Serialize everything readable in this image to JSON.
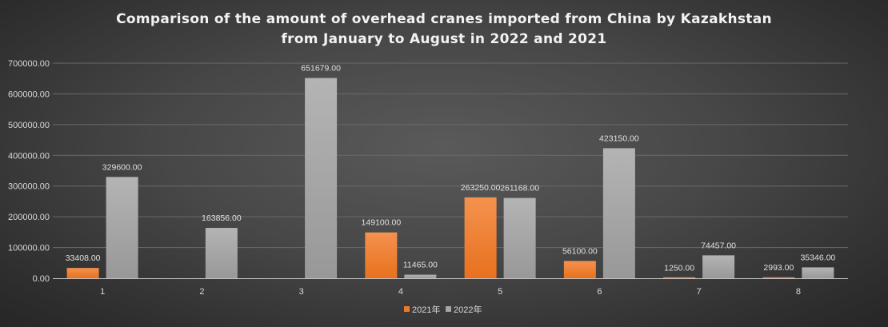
{
  "chart_data": {
    "type": "bar",
    "title_lines": [
      "Comparison of the amount of overhead cranes imported from China by Kazakhstan",
      "from January to August in 2022 and 2021"
    ],
    "categories": [
      "1",
      "2",
      "3",
      "4",
      "5",
      "6",
      "7",
      "8"
    ],
    "series": [
      {
        "name": "2021年",
        "color": "#ee7a2a",
        "values": [
          33408,
          null,
          null,
          149100,
          263250,
          56100,
          1250,
          2993
        ],
        "labels": [
          "33408.00",
          "",
          "",
          "149100.00",
          "263250.00",
          "56100.00",
          "1250.00",
          "2993.00"
        ]
      },
      {
        "name": "2022年",
        "color": "#a6a6a6",
        "values": [
          329600,
          163856,
          651679,
          11465,
          261168,
          423150,
          74457,
          35346
        ],
        "labels": [
          "329600.00",
          "163856.00",
          "651679.00",
          "11465.00",
          "261168.00",
          "423150.00",
          "74457.00",
          "35346.00"
        ]
      }
    ],
    "y_ticks": [
      "0.00",
      "100000.00",
      "200000.00",
      "300000.00",
      "400000.00",
      "500000.00",
      "600000.00",
      "700000.00"
    ],
    "ylim": [
      0,
      700000
    ],
    "grid": true,
    "legend": "bottom-center",
    "xlabel": "",
    "ylabel": ""
  }
}
